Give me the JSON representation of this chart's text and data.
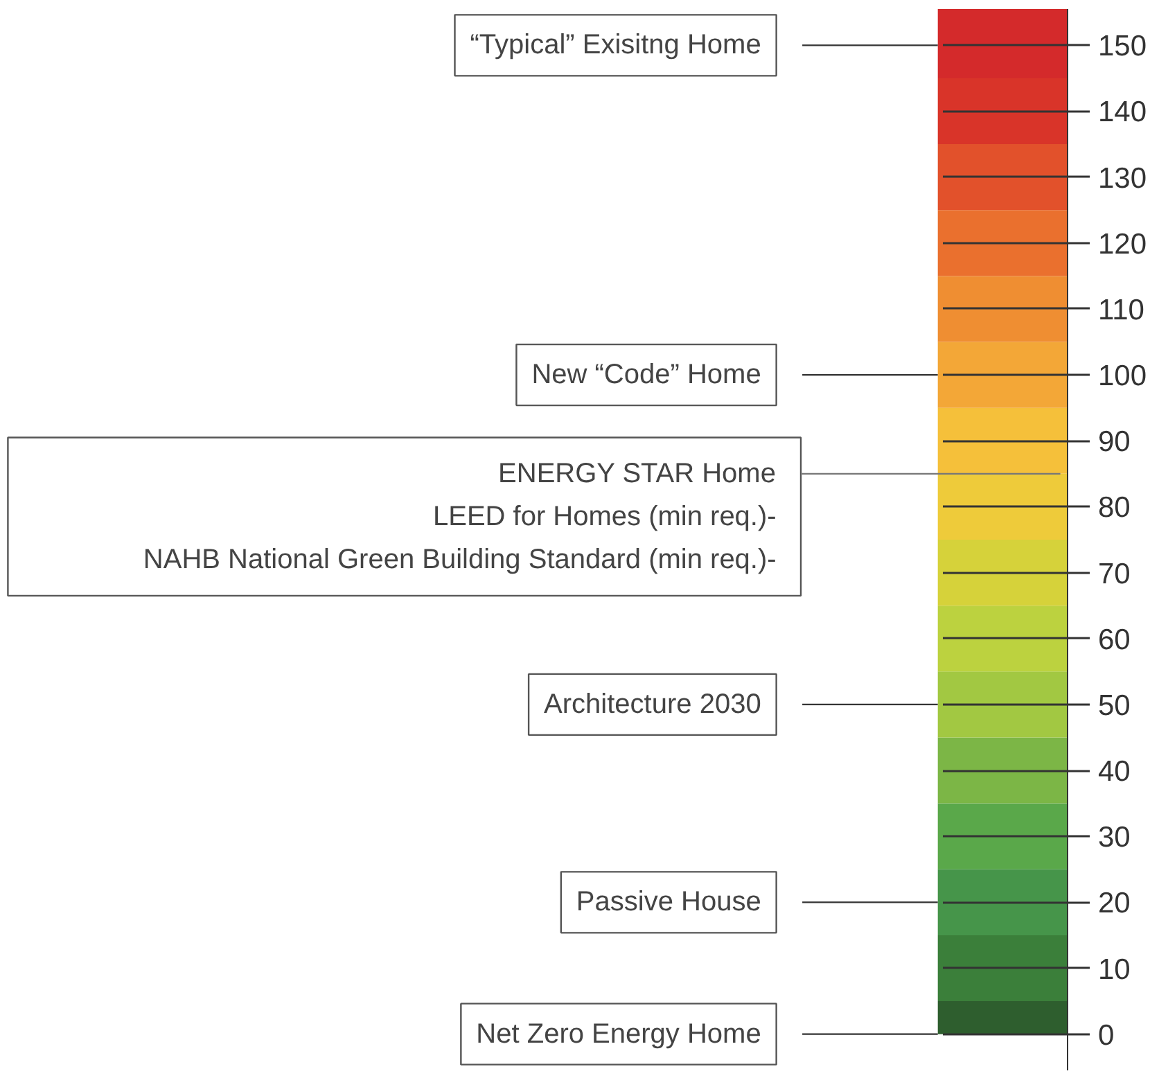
{
  "chart_data": {
    "type": "bar",
    "stacked": true,
    "categories": [
      null
    ],
    "ylim": [
      -5.5,
      155.5
    ],
    "grid": "y",
    "yticks": [
      0,
      10,
      20,
      30,
      40,
      50,
      60,
      70,
      80,
      90,
      100,
      110,
      120,
      130,
      140,
      150
    ],
    "series": [
      {
        "color": "#2e5e2e",
        "values": [
          5
        ]
      },
      {
        "color": "#3b7f3a",
        "values": [
          10
        ]
      },
      {
        "color": "#46954a",
        "values": [
          10
        ]
      },
      {
        "color": "#5aa84a",
        "values": [
          10
        ]
      },
      {
        "color": "#7cb646",
        "values": [
          10
        ]
      },
      {
        "color": "#a2c842",
        "values": [
          10
        ]
      },
      {
        "color": "#bcd23f",
        "values": [
          10
        ]
      },
      {
        "color": "#d6d23a",
        "values": [
          10
        ]
      },
      {
        "color": "#eecb3a",
        "values": [
          10
        ]
      },
      {
        "color": "#f5c03a",
        "values": [
          10
        ]
      },
      {
        "color": "#f3a737",
        "values": [
          10
        ]
      },
      {
        "color": "#ef8e32",
        "values": [
          10
        ]
      },
      {
        "color": "#ea702e",
        "values": [
          10
        ]
      },
      {
        "color": "#e2512b",
        "values": [
          10
        ]
      },
      {
        "color": "#d93429",
        "values": [
          10
        ]
      },
      {
        "color": "#d42a2b",
        "values": [
          10.5
        ]
      }
    ],
    "ref_lines": [
      {
        "axis": "y",
        "value": 150,
        "label": "“Typical” Exisitng Home",
        "color": "#333333"
      },
      {
        "axis": "y",
        "value": 100,
        "label": "New “Code” Home",
        "color": "#333333"
      },
      {
        "axis": "y",
        "value": 85,
        "label": "ENERGY STAR Home",
        "color": "#777777"
      },
      {
        "axis": "y",
        "value": 50,
        "label": "Architecture 2030",
        "color": "#333333"
      },
      {
        "axis": "y",
        "value": 20,
        "label": "Passive House",
        "color": "#333333"
      },
      {
        "axis": "y",
        "value": 0,
        "label": "Net Zero Energy Home",
        "color": "#333333"
      }
    ],
    "annotations": [
      "LEED for Homes (min req.)-",
      "NAHB National Green Building Standard (min req.)-"
    ]
  }
}
